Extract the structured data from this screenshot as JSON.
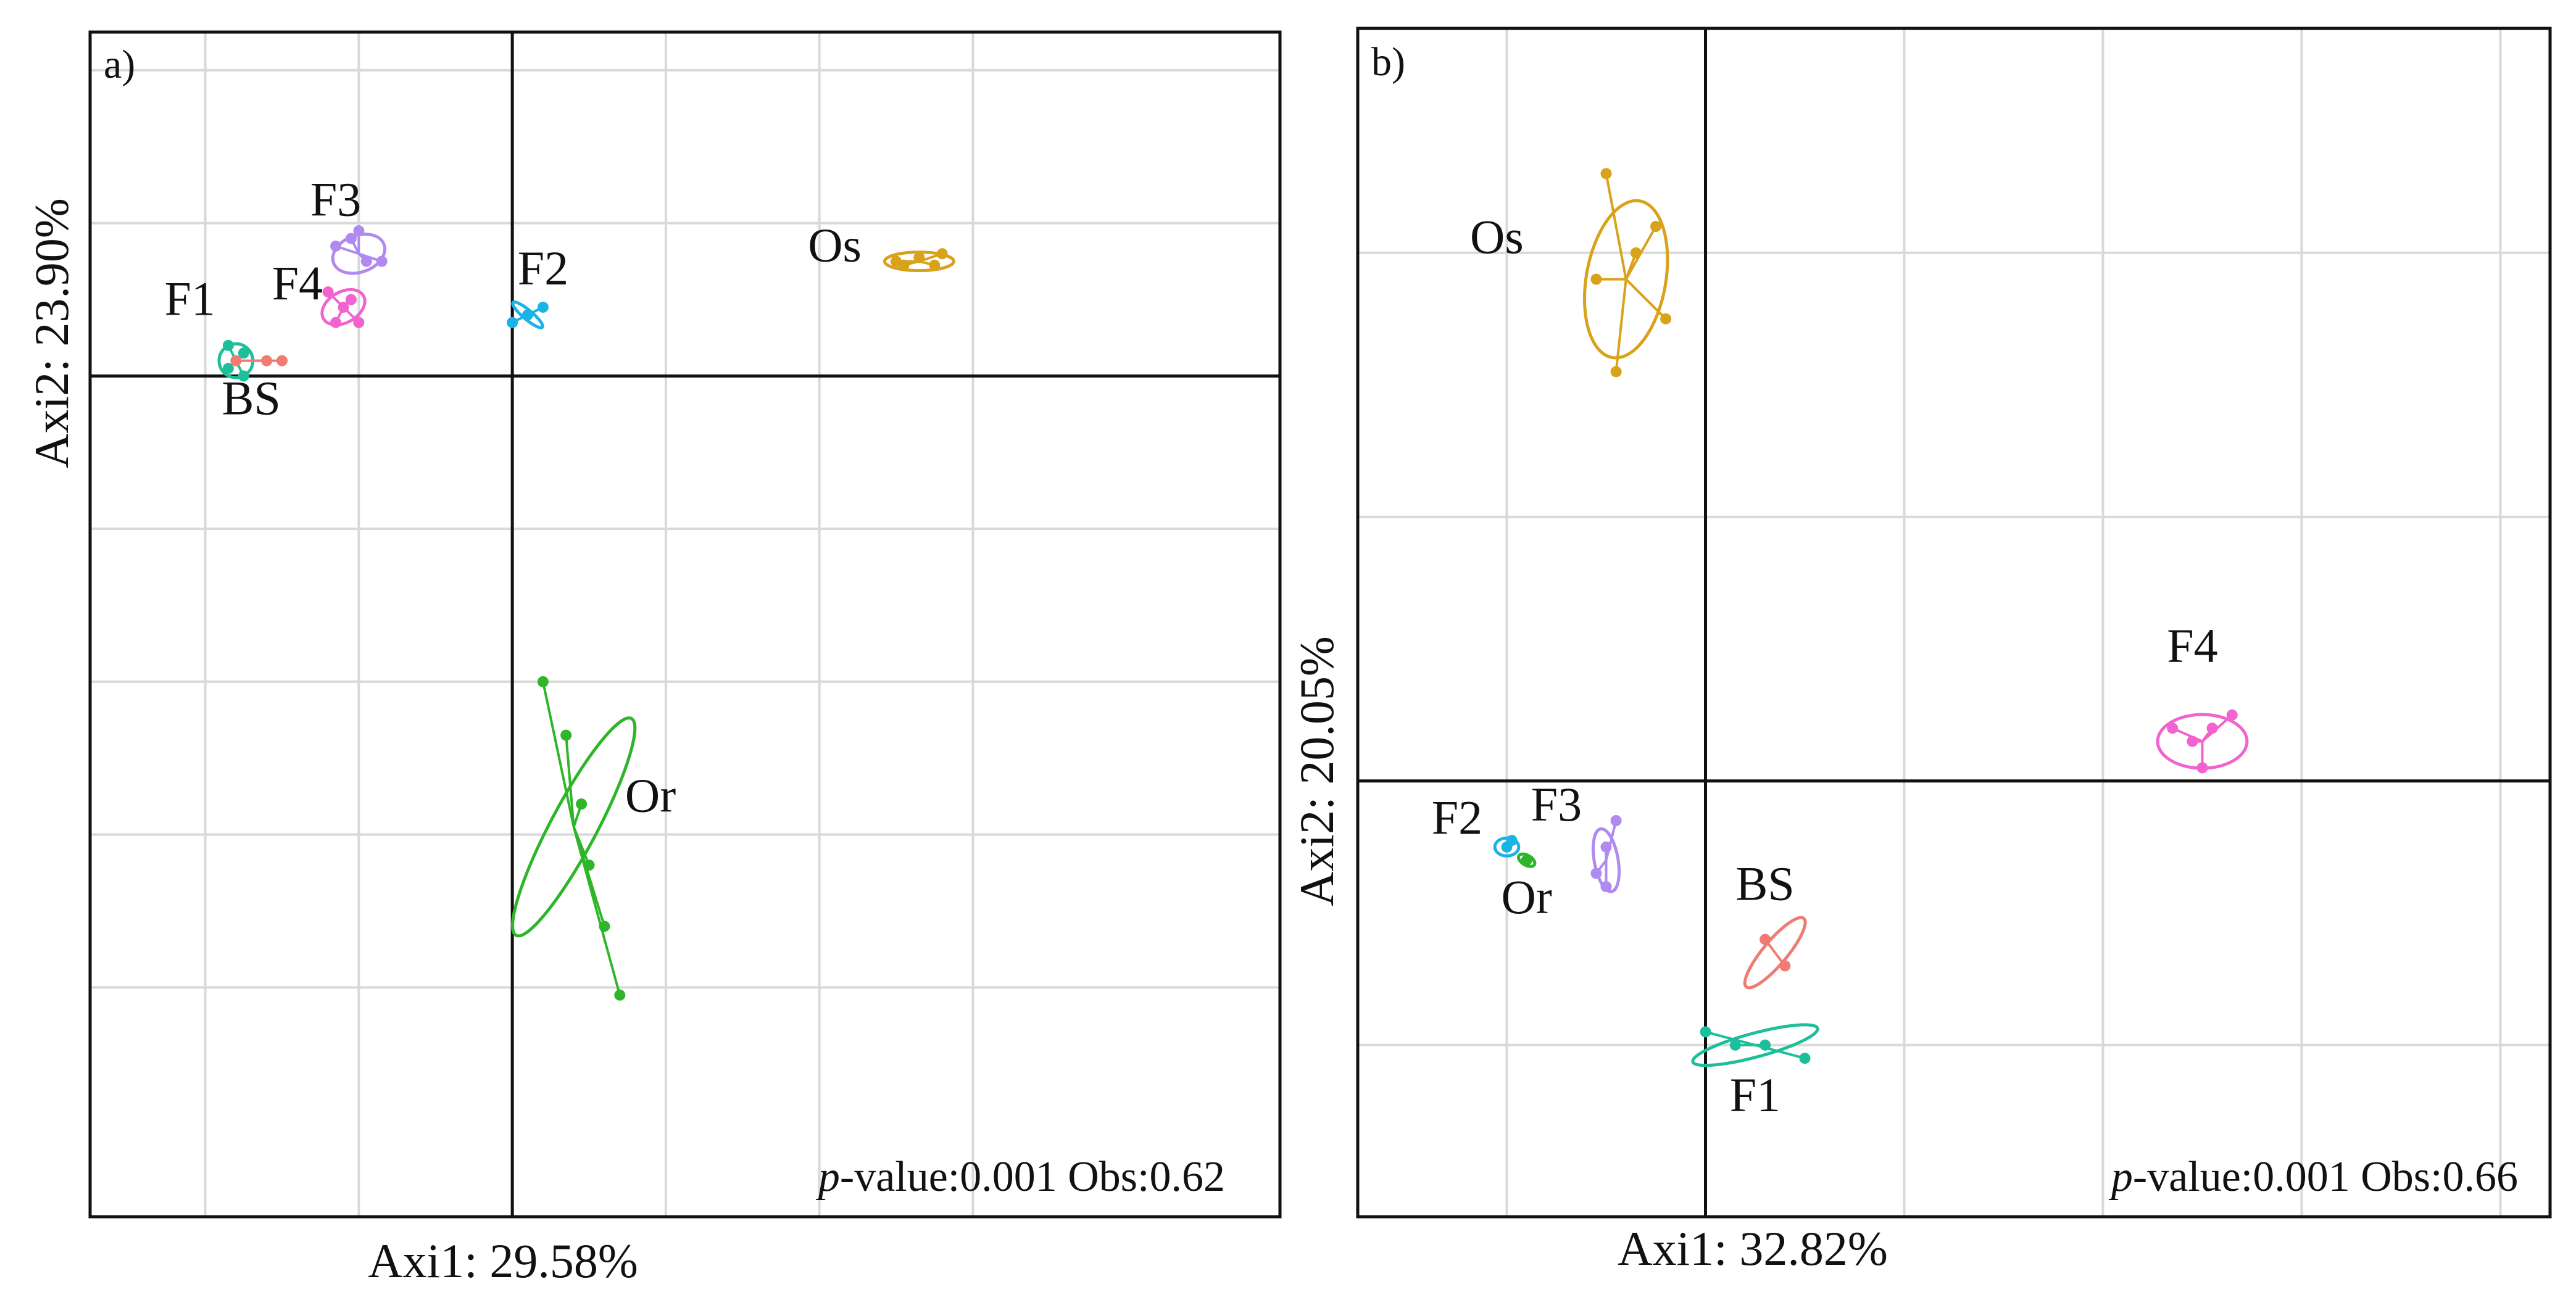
{
  "chart_data": [
    {
      "type": "scatter",
      "panel_label": "a)",
      "xlabel": "Axi1: 29.58%",
      "ylabel": "Axi2: 23.90%",
      "annotation": {
        "pvalue_label": "p",
        "pvalue_rest": "-value:0.001 Obs:0.62"
      },
      "xlim": [
        -0.55,
        1.0
      ],
      "ylim": [
        -1.1,
        0.45
      ],
      "xgrid": [
        -0.4,
        -0.2,
        0.0,
        0.2,
        0.4,
        0.6
      ],
      "ygrid": [
        0.4,
        0.2,
        0.0,
        -0.2,
        -0.4,
        -0.6,
        -0.8
      ],
      "groups": [
        {
          "name": "F1",
          "color": "#1dbf9a",
          "center": [
            -0.36,
            0.02
          ],
          "rx": 0.022,
          "ry": 0.022,
          "angle": 0,
          "points": [
            [
              -0.37,
              0.01
            ],
            [
              -0.35,
              0.03
            ],
            [
              -0.37,
              0.04
            ],
            [
              -0.35,
              0.0
            ]
          ],
          "label": "F1",
          "label_xy": [
            -0.42,
            0.08
          ]
        },
        {
          "name": "BS",
          "color": "#f07b72",
          "center": [
            -0.34,
            0.02
          ],
          "rx": 0.0,
          "ry": 0.0,
          "angle": 0,
          "points": [
            [
              -0.36,
              0.02
            ],
            [
              -0.32,
              0.02
            ],
            [
              -0.3,
              0.02
            ]
          ],
          "label": "BS",
          "label_xy": [
            -0.34,
            -0.05
          ]
        },
        {
          "name": "F3",
          "color": "#b08af0",
          "center": [
            -0.2,
            0.16
          ],
          "rx": 0.035,
          "ry": 0.024,
          "angle": 20,
          "points": [
            [
              -0.23,
              0.17
            ],
            [
              -0.21,
              0.18
            ],
            [
              -0.19,
              0.15
            ],
            [
              -0.17,
              0.15
            ],
            [
              -0.2,
              0.19
            ]
          ],
          "label": "F3",
          "label_xy": [
            -0.23,
            0.21
          ]
        },
        {
          "name": "F4",
          "color": "#f263cf",
          "center": [
            -0.22,
            0.09
          ],
          "rx": 0.03,
          "ry": 0.02,
          "angle": 30,
          "points": [
            [
              -0.24,
              0.11
            ],
            [
              -0.22,
              0.09
            ],
            [
              -0.2,
              0.07
            ],
            [
              -0.23,
              0.07
            ],
            [
              -0.21,
              0.1
            ]
          ],
          "label": "F4",
          "label_xy": [
            -0.28,
            0.1
          ]
        },
        {
          "name": "F2",
          "color": "#1ab3e6",
          "center": [
            0.02,
            0.08
          ],
          "rx": 0.025,
          "ry": 0.006,
          "angle": -40,
          "points": [
            [
              0.0,
              0.07
            ],
            [
              0.02,
              0.08
            ],
            [
              0.04,
              0.09
            ]
          ],
          "label": "F2",
          "label_xy": [
            0.04,
            0.12
          ]
        },
        {
          "name": "Os",
          "color": "#d9a21b",
          "center": [
            0.53,
            0.15
          ],
          "rx": 0.045,
          "ry": 0.012,
          "angle": 0,
          "points": [
            [
              0.5,
              0.15
            ],
            [
              0.53,
              0.155
            ],
            [
              0.56,
              0.16
            ],
            [
              0.51,
              0.145
            ],
            [
              0.55,
              0.145
            ]
          ],
          "label": "Os",
          "label_xy": [
            0.42,
            0.15
          ]
        },
        {
          "name": "Or",
          "color": "#2fb52a",
          "center": [
            0.08,
            -0.59
          ],
          "rx": 0.16,
          "ry": 0.03,
          "angle": 62,
          "points": [
            [
              0.04,
              -0.4
            ],
            [
              0.07,
              -0.47
            ],
            [
              0.09,
              -0.56
            ],
            [
              0.1,
              -0.64
            ],
            [
              0.12,
              -0.72
            ],
            [
              0.14,
              -0.81
            ]
          ],
          "label": "Or",
          "label_xy": [
            0.18,
            -0.57
          ]
        }
      ]
    },
    {
      "type": "scatter",
      "panel_label": "b)",
      "xlabel": "Axi1: 32.82%",
      "ylabel": "Axi2: 20.05%",
      "annotation": {
        "pvalue_label": "p",
        "pvalue_rest": "-value:0.001 Obs:0.66"
      },
      "xlim": [
        -0.35,
        0.85
      ],
      "ylim": [
        -0.33,
        0.57
      ],
      "xgrid": [
        -0.2,
        0.0,
        0.2,
        0.4,
        0.6,
        0.8
      ],
      "ygrid": [
        0.4,
        0.2,
        0.0,
        -0.2
      ],
      "groups": [
        {
          "name": "Os",
          "color": "#d9a21b",
          "center": [
            -0.08,
            0.38
          ],
          "rx": 0.08,
          "ry": 0.04,
          "angle": 80,
          "points": [
            [
              -0.1,
              0.46
            ],
            [
              -0.04,
              0.35
            ],
            [
              -0.09,
              0.31
            ],
            [
              -0.05,
              0.42
            ],
            [
              -0.11,
              0.38
            ],
            [
              -0.07,
              0.4
            ]
          ],
          "label": "Os",
          "label_xy": [
            -0.21,
            0.4
          ]
        },
        {
          "name": "F4",
          "color": "#f263cf",
          "center": [
            0.5,
            0.03
          ],
          "rx": 0.045,
          "ry": 0.027,
          "angle": 0,
          "points": [
            [
              0.47,
              0.04
            ],
            [
              0.53,
              0.05
            ],
            [
              0.5,
              0.01
            ],
            [
              0.49,
              0.03
            ],
            [
              0.51,
              0.04
            ]
          ],
          "label": "F4",
          "label_xy": [
            0.49,
            0.09
          ]
        },
        {
          "name": "F2",
          "color": "#1ab3e6",
          "center": [
            -0.2,
            -0.05
          ],
          "rx": 0.012,
          "ry": 0.009,
          "angle": 0,
          "points": [
            [
              -0.2,
              -0.05
            ],
            [
              -0.195,
              -0.045
            ]
          ],
          "label": "F2",
          "label_xy": [
            -0.25,
            -0.04
          ]
        },
        {
          "name": "Or",
          "color": "#2fb52a",
          "center": [
            -0.18,
            -0.06
          ],
          "rx": 0.009,
          "ry": 0.005,
          "angle": -30,
          "points": [
            [
              -0.18,
              -0.06
            ]
          ],
          "label": "Or",
          "label_xy": [
            -0.18,
            -0.1
          ]
        },
        {
          "name": "F3",
          "color": "#b08af0",
          "center": [
            -0.1,
            -0.06
          ],
          "rx": 0.012,
          "ry": 0.032,
          "angle": 10,
          "points": [
            [
              -0.1,
              -0.05
            ],
            [
              -0.11,
              -0.07
            ],
            [
              -0.1,
              -0.08
            ],
            [
              -0.09,
              -0.03
            ]
          ],
          "label": "F3",
          "label_xy": [
            -0.15,
            -0.03
          ]
        },
        {
          "name": "BS",
          "color": "#f07b72",
          "center": [
            0.07,
            -0.13
          ],
          "rx": 0.045,
          "ry": 0.012,
          "angle": 50,
          "points": [
            [
              0.06,
              -0.12
            ],
            [
              0.08,
              -0.14
            ]
          ],
          "label": "BS",
          "label_xy": [
            0.06,
            -0.09
          ]
        },
        {
          "name": "F1",
          "color": "#1dbf9a",
          "center": [
            0.05,
            -0.2
          ],
          "rx": 0.065,
          "ry": 0.012,
          "angle": 15,
          "points": [
            [
              0.0,
              -0.19
            ],
            [
              0.03,
              -0.2
            ],
            [
              0.06,
              -0.2
            ],
            [
              0.1,
              -0.21
            ]
          ],
          "label": "F1",
          "label_xy": [
            0.05,
            -0.25
          ]
        }
      ]
    }
  ]
}
